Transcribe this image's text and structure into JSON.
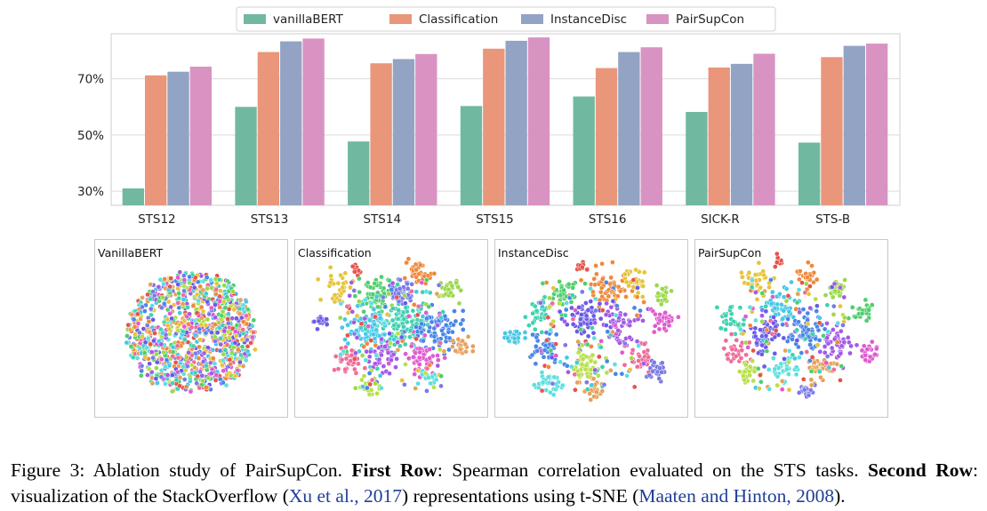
{
  "chart_data": [
    {
      "type": "bar",
      "categories": [
        "STS12",
        "STS13",
        "STS14",
        "STS15",
        "STS16",
        "SICK-R",
        "STS-B"
      ],
      "series": [
        {
          "name": "vanillaBERT",
          "color": "#71b8a0",
          "values": [
            31,
            60,
            47.7,
            60.3,
            63.7,
            58.2,
            47.3
          ]
        },
        {
          "name": "Classification",
          "color": "#e9967a",
          "values": [
            71.2,
            79.5,
            75.5,
            80.7,
            73.8,
            74,
            77.7
          ]
        },
        {
          "name": "InstanceDisc",
          "color": "#93a3c4",
          "values": [
            72.5,
            83.3,
            77,
            83.5,
            79.5,
            75.3,
            81.7
          ]
        },
        {
          "name": "PairSupCon",
          "color": "#d993c2",
          "values": [
            74.3,
            84.3,
            78.8,
            84.7,
            81.2,
            78.9,
            82.5
          ]
        }
      ],
      "yticks": [
        "30%",
        "50%",
        "70%"
      ],
      "ytick_values": [
        30,
        50,
        70
      ],
      "ylim": [
        25,
        86
      ],
      "grid": true,
      "legend_position": "top-center"
    },
    {
      "type": "scatter",
      "panels": [
        {
          "title": "VanillaBERT"
        },
        {
          "title": "Classification"
        },
        {
          "title": "InstanceDisc"
        },
        {
          "title": "PairSupCon"
        }
      ]
    }
  ],
  "caption": {
    "part1": "Figure 3: Ablation study of PairSupCon. ",
    "bold1": "First Row",
    "part2": ": Spearman correlation evaluated on the STS tasks. ",
    "bold2": "Second Row",
    "part3": ": visualization of the StackOverflow (",
    "cite1": "Xu et al., 2017",
    "part4": ") representations using t-SNE (",
    "cite2": "Maaten and Hinton, 2008",
    "part5": ")."
  }
}
